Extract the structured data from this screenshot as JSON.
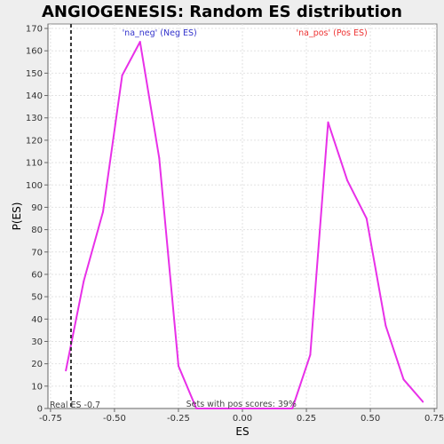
{
  "chart_data": {
    "type": "line",
    "title": "ANGIOGENESIS: Random ES distribution",
    "xlabel": "ES",
    "ylabel": "P(ES)",
    "xlim": [
      -0.76,
      0.76
    ],
    "ylim": [
      0,
      172
    ],
    "xticks": [
      -0.75,
      -0.5,
      -0.25,
      0.0,
      0.25,
      0.5,
      0.75
    ],
    "xtick_labels": [
      "-0.75",
      "-0.50",
      "-0.25",
      "0.00",
      "0.25",
      "0.50",
      "0.75"
    ],
    "yticks": [
      0,
      10,
      20,
      30,
      40,
      50,
      60,
      70,
      80,
      90,
      100,
      110,
      120,
      130,
      140,
      150,
      160,
      170
    ],
    "grid": true,
    "series": [
      {
        "name": "random ES distribution",
        "color": "#e830e8",
        "x": [
          -0.69,
          -0.62,
          -0.545,
          -0.47,
          -0.4,
          -0.325,
          -0.25,
          -0.18,
          0.195,
          0.265,
          0.335,
          0.41,
          0.485,
          0.56,
          0.63,
          0.705
        ],
        "y": [
          17,
          57,
          88,
          149,
          164,
          112,
          19,
          0,
          0,
          24,
          128,
          102,
          85,
          37,
          13,
          3
        ]
      }
    ],
    "real_es": -0.67,
    "annotations": {
      "neg_label": "'na_neg' (Neg ES)",
      "pos_label": "'na_pos' (Pos ES)",
      "neg_color": "#3333cc",
      "pos_color": "#ee3333",
      "real_es_label": "Real ES -0.7",
      "pos_scores_label": "Sets with pos scores: 39%"
    }
  }
}
